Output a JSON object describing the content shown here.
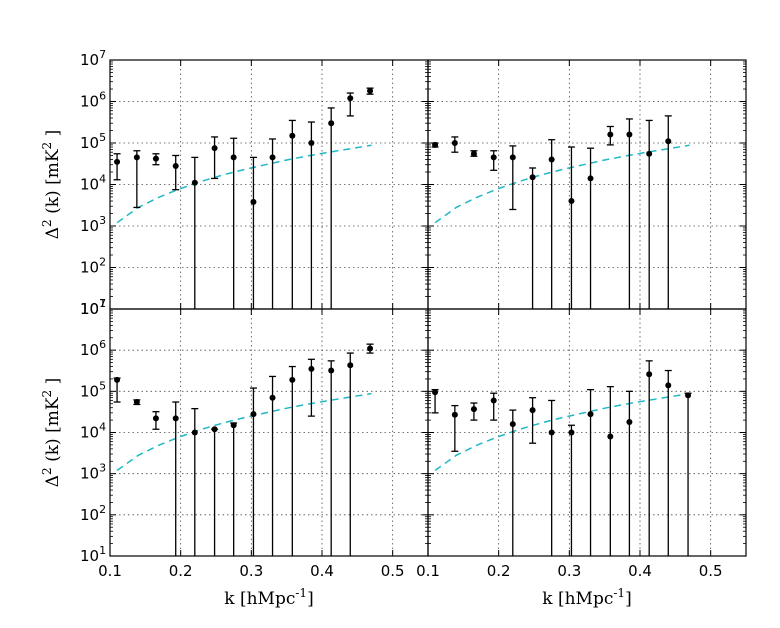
{
  "chart_data": {
    "type": "scatter",
    "layout": "2x2 grid, shared axes",
    "xlabel": "k [hMpc^-1]",
    "ylabel": "Δ^2 (k) [mK^2 ]",
    "xlim": [
      0.1,
      0.55
    ],
    "ylim": [
      10,
      10000000
    ],
    "yscale": "log",
    "grid": true,
    "x_ticks": [
      "0.1",
      "0.2",
      "0.3",
      "0.4",
      "0.5"
    ],
    "y_ticks": [
      "10^1",
      "10^2",
      "10^3",
      "10^4",
      "10^5",
      "10^6",
      "10^7"
    ],
    "model_curve": {
      "name": "model (dashed cyan)",
      "color": "#1fb8c4",
      "x": [
        0.11,
        0.14,
        0.17,
        0.2,
        0.23,
        0.26,
        0.29,
        0.32,
        0.35,
        0.38,
        0.41,
        0.44,
        0.47
      ],
      "y": [
        1200,
        2800,
        5000,
        8000,
        12000,
        17000,
        23000,
        30000,
        39000,
        49000,
        60000,
        73000,
        88000
      ]
    },
    "panels": [
      {
        "name": "top-left",
        "points": [
          {
            "x": 0.11,
            "y": 35000,
            "lo": 13000,
            "hi": 55000
          },
          {
            "x": 0.138,
            "y": 45000,
            "lo": 2800,
            "hi": 65000
          },
          {
            "x": 0.165,
            "y": 42000,
            "lo": 30000,
            "hi": 55000
          },
          {
            "x": 0.193,
            "y": 28000,
            "lo": 7500,
            "hi": 50000
          },
          {
            "x": 0.22,
            "y": 11000,
            "lo": 10,
            "hi": 45000
          },
          {
            "x": 0.248,
            "y": 75000,
            "lo": 14000,
            "hi": 140000
          },
          {
            "x": 0.275,
            "y": 45000,
            "lo": 10,
            "hi": 130000
          },
          {
            "x": 0.303,
            "y": 3800,
            "lo": 10,
            "hi": 45000
          },
          {
            "x": 0.33,
            "y": 45000,
            "lo": 10,
            "hi": 125000
          },
          {
            "x": 0.358,
            "y": 150000,
            "lo": 10,
            "hi": 350000
          },
          {
            "x": 0.385,
            "y": 100000,
            "lo": 10,
            "hi": 320000
          },
          {
            "x": 0.413,
            "y": 300000,
            "lo": 10,
            "hi": 700000
          },
          {
            "x": 0.44,
            "y": 1200000,
            "lo": 450000,
            "hi": 1600000
          },
          {
            "x": 0.468,
            "y": 1800000,
            "lo": 1500000,
            "hi": 2100000
          }
        ]
      },
      {
        "name": "top-right",
        "points": [
          {
            "x": 0.11,
            "y": 90000,
            "lo": 80000,
            "hi": 100000
          },
          {
            "x": 0.138,
            "y": 100000,
            "lo": 60000,
            "hi": 140000
          },
          {
            "x": 0.165,
            "y": 55000,
            "lo": 48000,
            "hi": 65000
          },
          {
            "x": 0.193,
            "y": 45000,
            "lo": 22000,
            "hi": 65000
          },
          {
            "x": 0.22,
            "y": 45000,
            "lo": 2500,
            "hi": 85000
          },
          {
            "x": 0.248,
            "y": 15000,
            "lo": 10,
            "hi": 25000
          },
          {
            "x": 0.275,
            "y": 40000,
            "lo": 10,
            "hi": 120000
          },
          {
            "x": 0.303,
            "y": 4000,
            "lo": 10,
            "hi": 80000
          },
          {
            "x": 0.33,
            "y": 14000,
            "lo": 10,
            "hi": 75000
          },
          {
            "x": 0.358,
            "y": 160000,
            "lo": 90000,
            "hi": 250000
          },
          {
            "x": 0.385,
            "y": 160000,
            "lo": 10,
            "hi": 380000
          },
          {
            "x": 0.413,
            "y": 55000,
            "lo": 10,
            "hi": 350000
          },
          {
            "x": 0.44,
            "y": 110000,
            "lo": 10,
            "hi": 450000
          }
        ]
      },
      {
        "name": "bottom-left",
        "points": [
          {
            "x": 0.11,
            "y": 190000,
            "lo": 55000,
            "hi": 210000
          },
          {
            "x": 0.138,
            "y": 55000,
            "lo": 48000,
            "hi": 62000
          },
          {
            "x": 0.165,
            "y": 22000,
            "lo": 12000,
            "hi": 32000
          },
          {
            "x": 0.193,
            "y": 22000,
            "lo": 10,
            "hi": 55000
          },
          {
            "x": 0.22,
            "y": 10000,
            "lo": 10,
            "hi": 38000
          },
          {
            "x": 0.248,
            "y": 12000,
            "lo": 10,
            "hi": 12000
          },
          {
            "x": 0.275,
            "y": 15000,
            "lo": 10,
            "hi": 17000
          },
          {
            "x": 0.303,
            "y": 28000,
            "lo": 10,
            "hi": 120000
          },
          {
            "x": 0.33,
            "y": 70000,
            "lo": 10,
            "hi": 230000
          },
          {
            "x": 0.358,
            "y": 190000,
            "lo": 10,
            "hi": 400000
          },
          {
            "x": 0.385,
            "y": 350000,
            "lo": 25000,
            "hi": 600000
          },
          {
            "x": 0.413,
            "y": 320000,
            "lo": 10,
            "hi": 550000
          },
          {
            "x": 0.44,
            "y": 430000,
            "lo": 10,
            "hi": 850000
          },
          {
            "x": 0.468,
            "y": 1100000,
            "lo": 850000,
            "hi": 1400000
          }
        ]
      },
      {
        "name": "bottom-right",
        "points": [
          {
            "x": 0.11,
            "y": 95000,
            "lo": 30000,
            "hi": 110000
          },
          {
            "x": 0.138,
            "y": 27000,
            "lo": 3500,
            "hi": 45000
          },
          {
            "x": 0.165,
            "y": 37000,
            "lo": 20000,
            "hi": 52000
          },
          {
            "x": 0.193,
            "y": 60000,
            "lo": 20000,
            "hi": 90000
          },
          {
            "x": 0.22,
            "y": 16000,
            "lo": 10,
            "hi": 35000
          },
          {
            "x": 0.248,
            "y": 35000,
            "lo": 5500,
            "hi": 70000
          },
          {
            "x": 0.275,
            "y": 10000,
            "lo": 10,
            "hi": 60000
          },
          {
            "x": 0.303,
            "y": 10000,
            "lo": 10,
            "hi": 15000
          },
          {
            "x": 0.33,
            "y": 28000,
            "lo": 10,
            "hi": 110000
          },
          {
            "x": 0.358,
            "y": 8000,
            "lo": 10,
            "hi": 130000
          },
          {
            "x": 0.385,
            "y": 18000,
            "lo": 10,
            "hi": 100000
          },
          {
            "x": 0.413,
            "y": 260000,
            "lo": 10,
            "hi": 550000
          },
          {
            "x": 0.44,
            "y": 140000,
            "lo": 10,
            "hi": 320000
          },
          {
            "x": 0.468,
            "y": 80000,
            "lo": 10,
            "hi": 90000
          }
        ]
      }
    ]
  }
}
